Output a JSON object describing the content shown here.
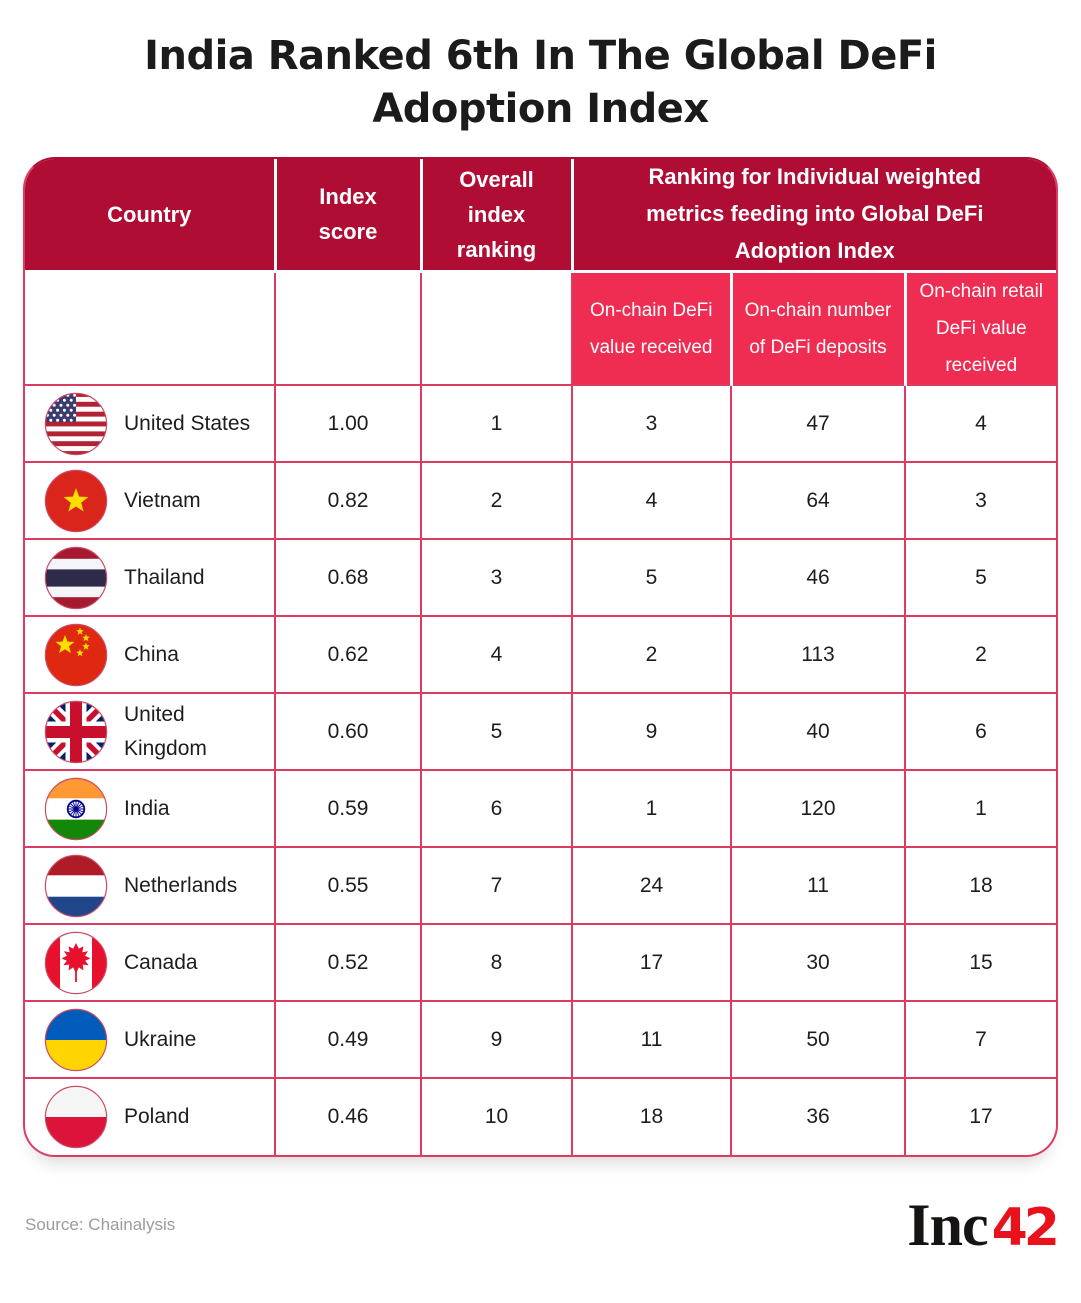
{
  "title": "India Ranked 6th In The Global DeFi Adoption Index",
  "footer": {
    "source": "Source: Chainalysis",
    "logo_black": "Inc",
    "logo_red": "42"
  },
  "colors": {
    "header_dark_red": "#B00D35",
    "subheader_pink": "#EF2C52",
    "grid_line": "#DC3C62",
    "logo_red": "#E8111C",
    "text_dark": "#1d1d1d",
    "source_gray": "#9b9b9b"
  },
  "chart_data": {
    "type": "table",
    "title": "India Ranked 6th In The Global DeFi Adoption Index",
    "source": "Chainalysis",
    "columns": [
      "Country",
      "Index score",
      "Overall index ranking",
      "On-chain DeFi value received",
      "On-chain number of DeFi deposits",
      "On-chain retail DeFi value received"
    ],
    "column_group": {
      "label": "Ranking for Individual weighted metrics feeding into Global DeFi Adoption Index",
      "spans": [
        "On-chain DeFi value received",
        "On-chain number of DeFi deposits",
        "On-chain retail DeFi value received"
      ]
    },
    "rows": [
      {
        "country": "United States",
        "flag": "united-states",
        "index_score": "1.00",
        "overall_index_ranking": 1,
        "on_chain_defi_value_received": 3,
        "on_chain_number_of_defi_deposits": 47,
        "on_chain_retail_defi_value_received": 4
      },
      {
        "country": "Vietnam",
        "flag": "vietnam",
        "index_score": "0.82",
        "overall_index_ranking": 2,
        "on_chain_defi_value_received": 4,
        "on_chain_number_of_defi_deposits": 64,
        "on_chain_retail_defi_value_received": 3
      },
      {
        "country": "Thailand",
        "flag": "thailand",
        "index_score": "0.68",
        "overall_index_ranking": 3,
        "on_chain_defi_value_received": 5,
        "on_chain_number_of_defi_deposits": 46,
        "on_chain_retail_defi_value_received": 5
      },
      {
        "country": "China",
        "flag": "china",
        "index_score": "0.62",
        "overall_index_ranking": 4,
        "on_chain_defi_value_received": 2,
        "on_chain_number_of_defi_deposits": 113,
        "on_chain_retail_defi_value_received": 2
      },
      {
        "country": "United Kingdom",
        "flag": "united-kingdom",
        "index_score": "0.60",
        "overall_index_ranking": 5,
        "on_chain_defi_value_received": 9,
        "on_chain_number_of_defi_deposits": 40,
        "on_chain_retail_defi_value_received": 6
      },
      {
        "country": "India",
        "flag": "india",
        "index_score": "0.59",
        "overall_index_ranking": 6,
        "on_chain_defi_value_received": 1,
        "on_chain_number_of_defi_deposits": 120,
        "on_chain_retail_defi_value_received": 1
      },
      {
        "country": "Netherlands",
        "flag": "netherlands",
        "index_score": "0.55",
        "overall_index_ranking": 7,
        "on_chain_defi_value_received": 24,
        "on_chain_number_of_defi_deposits": 11,
        "on_chain_retail_defi_value_received": 18
      },
      {
        "country": "Canada",
        "flag": "canada",
        "index_score": "0.52",
        "overall_index_ranking": 8,
        "on_chain_defi_value_received": 17,
        "on_chain_number_of_defi_deposits": 30,
        "on_chain_retail_defi_value_received": 15
      },
      {
        "country": "Ukraine",
        "flag": "ukraine",
        "index_score": "0.49",
        "overall_index_ranking": 9,
        "on_chain_defi_value_received": 11,
        "on_chain_number_of_defi_deposits": 50,
        "on_chain_retail_defi_value_received": 7
      },
      {
        "country": "Poland",
        "flag": "poland",
        "index_score": "0.46",
        "overall_index_ranking": 10,
        "on_chain_defi_value_received": 18,
        "on_chain_number_of_defi_deposits": 36,
        "on_chain_retail_defi_value_received": 17
      }
    ]
  }
}
